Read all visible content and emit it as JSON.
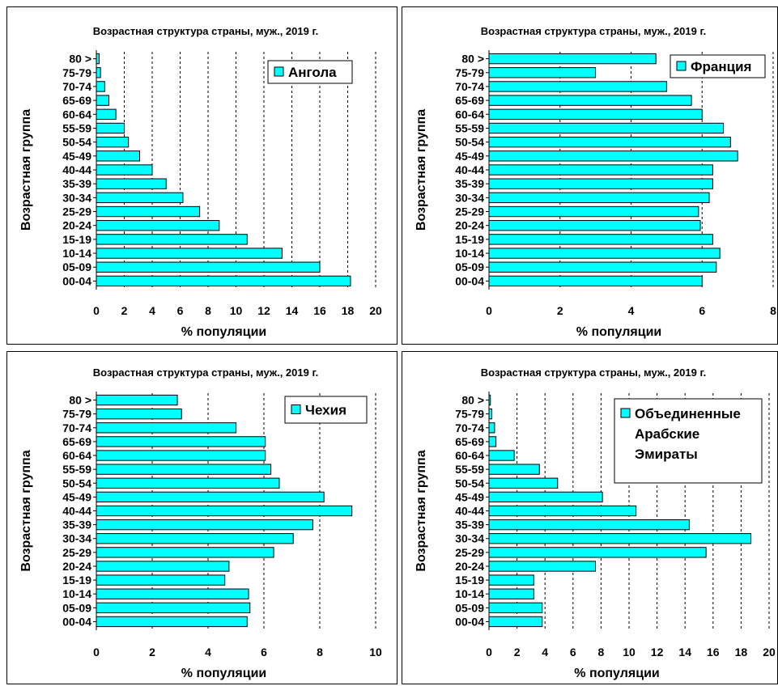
{
  "figure": {
    "title": "Возрастная структура страны, муж., 2019 г.",
    "xlabel": "% популяции",
    "ylabel": "Возрастная группа",
    "bar_color": "#00FFFF",
    "bar_edge_color": "#000000"
  },
  "chart_data": [
    {
      "type": "bar",
      "orientation": "horizontal",
      "title": "Возрастная структура страны, муж., 2019 г.",
      "xlabel": "% популяции",
      "ylabel": "Возрастная группа",
      "legend": [
        "Ангола"
      ],
      "legend_position": "top-right",
      "grid": "vertical dashed",
      "xlim": [
        0,
        20
      ],
      "xticks": [
        0,
        2,
        4,
        6,
        8,
        10,
        12,
        14,
        16,
        18,
        20
      ],
      "categories": [
        "80 >",
        "75-79",
        "70-74",
        "65-69",
        "60-64",
        "55-59",
        "50-54",
        "45-49",
        "40-44",
        "35-39",
        "30-34",
        "25-29",
        "20-24",
        "15-19",
        "10-14",
        "05-09",
        "00-04"
      ],
      "series": [
        {
          "name": "Ангола",
          "values": [
            0.2,
            0.3,
            0.6,
            0.9,
            1.4,
            2.0,
            2.3,
            3.1,
            4.0,
            5.0,
            6.2,
            7.4,
            8.8,
            10.8,
            13.3,
            16.0,
            18.2
          ]
        }
      ]
    },
    {
      "type": "bar",
      "orientation": "horizontal",
      "title": "Возрастная структура страны, муж., 2019 г.",
      "xlabel": "% популяции",
      "ylabel": "Возрастная группа",
      "legend": [
        "Франция"
      ],
      "legend_position": "top-right",
      "grid": "vertical dashed",
      "xlim": [
        0,
        8
      ],
      "xticks": [
        0,
        2,
        4,
        6,
        8
      ],
      "categories": [
        "80 >",
        "75-79",
        "70-74",
        "65-69",
        "60-64",
        "55-59",
        "50-54",
        "45-49",
        "40-44",
        "35-39",
        "30-34",
        "25-29",
        "20-24",
        "15-19",
        "10-14",
        "05-09",
        "00-04"
      ],
      "series": [
        {
          "name": "Франция",
          "values": [
            4.7,
            3.0,
            5.0,
            5.7,
            6.0,
            6.6,
            6.8,
            7.0,
            6.3,
            6.3,
            6.2,
            5.9,
            5.95,
            6.3,
            6.5,
            6.4,
            6.0
          ]
        }
      ]
    },
    {
      "type": "bar",
      "orientation": "horizontal",
      "title": "Возрастная структура страны, муж., 2019 г.",
      "xlabel": "% популяции",
      "ylabel": "Возрастная группа",
      "legend": [
        "Чехия"
      ],
      "legend_position": "top-right",
      "grid": "vertical dashed",
      "xlim": [
        0,
        10
      ],
      "xticks": [
        0,
        2,
        4,
        6,
        8,
        10
      ],
      "categories": [
        "80 >",
        "75-79",
        "70-74",
        "65-69",
        "60-64",
        "55-59",
        "50-54",
        "45-49",
        "40-44",
        "35-39",
        "30-34",
        "25-29",
        "20-24",
        "15-19",
        "10-14",
        "05-09",
        "00-04"
      ],
      "series": [
        {
          "name": "Чехия",
          "values": [
            2.9,
            3.05,
            5.0,
            6.05,
            6.05,
            6.25,
            6.55,
            8.15,
            9.15,
            7.75,
            7.05,
            6.35,
            4.75,
            4.6,
            5.45,
            5.5,
            5.4
          ]
        }
      ]
    },
    {
      "type": "bar",
      "orientation": "horizontal",
      "title": "Возрастная структура страны, муж., 2019 г.",
      "xlabel": "% популяции",
      "ylabel": "Возрастная группа",
      "legend": [
        "Объединенные Арабские Эмираты"
      ],
      "legend_lines": [
        "Объединенные",
        "Арабские",
        "Эмираты"
      ],
      "legend_position": "top-right",
      "grid": "vertical dashed",
      "xlim": [
        0,
        20
      ],
      "xticks": [
        0,
        2,
        4,
        6,
        8,
        10,
        12,
        14,
        16,
        18,
        20
      ],
      "categories": [
        "80 >",
        "75-79",
        "70-74",
        "65-69",
        "60-64",
        "55-59",
        "50-54",
        "45-49",
        "40-44",
        "35-39",
        "30-34",
        "25-29",
        "20-24",
        "15-19",
        "10-14",
        "05-09",
        "00-04"
      ],
      "series": [
        {
          "name": "Объединенные Арабские Эмираты",
          "values": [
            0.1,
            0.2,
            0.4,
            0.5,
            1.8,
            3.6,
            4.9,
            8.1,
            10.5,
            14.3,
            18.7,
            15.5,
            7.6,
            3.2,
            3.2,
            3.8,
            3.8
          ]
        }
      ]
    }
  ]
}
